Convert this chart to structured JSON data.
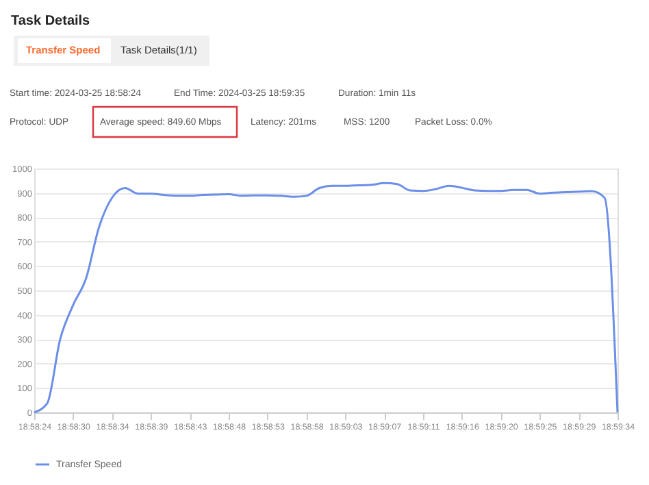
{
  "chart_data": {
    "type": "line",
    "title": "Task Details",
    "annotations": [
      "Transfer Speed",
      "Task Details(1/1)",
      "Start time: 2024-03-25 18:58:24",
      "End Time: 2024-03-25 18:59:35",
      "Duration: 1min 11s",
      "Protocol: UDP",
      "Average speed: 849.60 Mbps",
      "Latency: 201ms",
      "MSS: 1200",
      "Packet Loss: 0.0%"
    ],
    "categories": [
      "18:58:24",
      null,
      null,
      "18:58:30",
      null,
      null,
      "18:58:34",
      null,
      null,
      "18:58:39",
      null,
      null,
      "18:58:43",
      null,
      null,
      "18:58:48",
      null,
      null,
      "18:58:53",
      null,
      null,
      "18:58:58",
      null,
      null,
      "18:59:03",
      null,
      null,
      "18:59:07",
      null,
      null,
      "18:59:11",
      null,
      null,
      "18:59:16",
      null,
      null,
      "18:59:20",
      null,
      null,
      "18:59:25",
      null,
      null,
      "18:59:29",
      null,
      null,
      "18:59:34"
    ],
    "series": [
      {
        "name": "Transfer Speed",
        "color": "#6b8fe8",
        "values": [
          0,
          37,
          300,
          440,
          550,
          760,
          880,
          920,
          897,
          897,
          892,
          888,
          888,
          892,
          893,
          895,
          888,
          890,
          890,
          888,
          884,
          888,
          920,
          929,
          929,
          931,
          933,
          940,
          936,
          910,
          908,
          916,
          929,
          921,
          910,
          908,
          908,
          912,
          912,
          897,
          901,
          903,
          905,
          907,
          880,
          0
        ]
      }
    ],
    "ylim": [
      0,
      1000
    ],
    "yticks": [
      0,
      100,
      200,
      300,
      400,
      500,
      600,
      700,
      800,
      900,
      1000
    ],
    "grid": "y",
    "legend": "bottom",
    "marker": "none",
    "line_style": "solid"
  }
}
